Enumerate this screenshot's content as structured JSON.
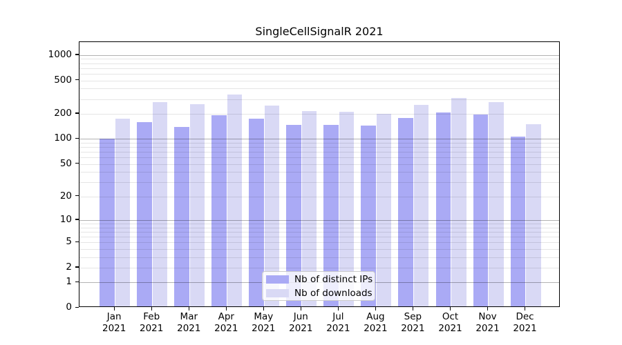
{
  "chart_data": {
    "type": "bar",
    "title": "SingleCellSignalR 2021",
    "xlabel": "",
    "ylabel": "",
    "yscale": "log1p",
    "ylim": [
      0,
      1430
    ],
    "grid": "horizontal, major at powers of 10, log minor lines",
    "legend_position": "inside plot, lower center",
    "categories": [
      "Jan",
      "Feb",
      "Mar",
      "Apr",
      "May",
      "Jun",
      "Jul",
      "Aug",
      "Sep",
      "Oct",
      "Nov",
      "Dec"
    ],
    "x_sublabel_year": "2021",
    "ytick_values": [
      0,
      1,
      2,
      5,
      10,
      20,
      50,
      100,
      200,
      500,
      1000
    ],
    "ytick_labels": [
      "0",
      "1",
      "2",
      "5",
      "10",
      "20",
      "50",
      "100",
      "200",
      "500",
      "1000"
    ],
    "series": [
      {
        "name": "Nb of distinct IPs",
        "color": "#aaaaf5",
        "values": [
          97,
          154,
          135,
          185,
          168,
          143,
          141,
          139,
          171,
          201,
          190,
          103
        ]
      },
      {
        "name": "Nb of downloads",
        "color": "#d9d9f5",
        "values": [
          169,
          265,
          251,
          325,
          243,
          207,
          205,
          192,
          246,
          297,
          265,
          144
        ]
      }
    ],
    "colors": {
      "background": "#ffffff",
      "spine": "#000000",
      "major_grid": "#adadad",
      "minor_grid": "#e6e6e6",
      "text": "#000000"
    }
  }
}
